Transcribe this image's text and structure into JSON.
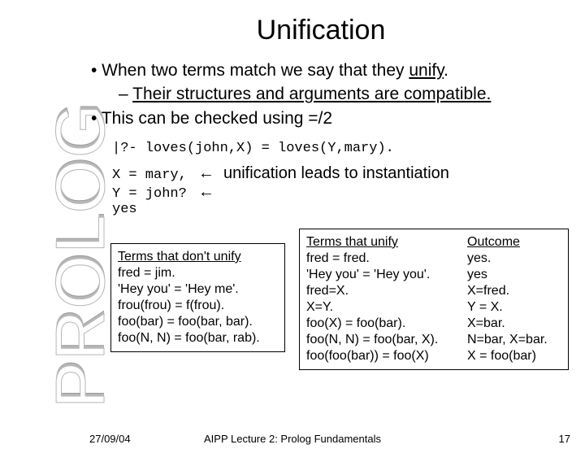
{
  "side_label": "PROLOG",
  "title": "Unification",
  "bullets": {
    "b1a_prefix": "• When two terms match we say that they ",
    "b1a_underline": "unify",
    "b1a_suffix": ".",
    "b1b_prefix": "– ",
    "b1b_underline": "Their structures and arguments are compatible.",
    "b1c": "• This can be checked using =/2"
  },
  "query_line": "|?- loves(john,X) = loves(Y,mary).",
  "inst": {
    "r1_mono": "X = mary,",
    "r1_arrow": "←  unification leads to instantiation",
    "r2_mono": "Y = john?",
    "r2_arrow": "←",
    "r3_mono": "yes"
  },
  "box_left": {
    "header": "Terms that don't unify",
    "rows": [
      "fred = jim.",
      "'Hey you' = 'Hey me'.",
      "frou(frou) = f(frou).",
      "foo(bar) = foo(bar, bar).",
      "foo(N, N) = foo(bar, rab)."
    ]
  },
  "box_right": {
    "header_term": "Terms that unify",
    "header_out": "Outcome",
    "rows": [
      {
        "term": "fred = fred.",
        "out": "yes."
      },
      {
        "term": "'Hey you' = 'Hey you'.",
        "out": "yes"
      },
      {
        "term": "fred=X.",
        "out": "X=fred."
      },
      {
        "term": "X=Y.",
        "out": "Y = X."
      },
      {
        "term": "foo(X) = foo(bar).",
        "out": "X=bar."
      },
      {
        "term": "foo(N, N) = foo(bar, X).",
        "out": "N=bar, X=bar."
      },
      {
        "term": "foo(foo(bar)) = foo(X)",
        "out": " X = foo(bar)"
      }
    ]
  },
  "footer": {
    "date": "27/09/04",
    "center": "AIPP Lecture 2: Prolog Fundamentals",
    "num": "17"
  }
}
